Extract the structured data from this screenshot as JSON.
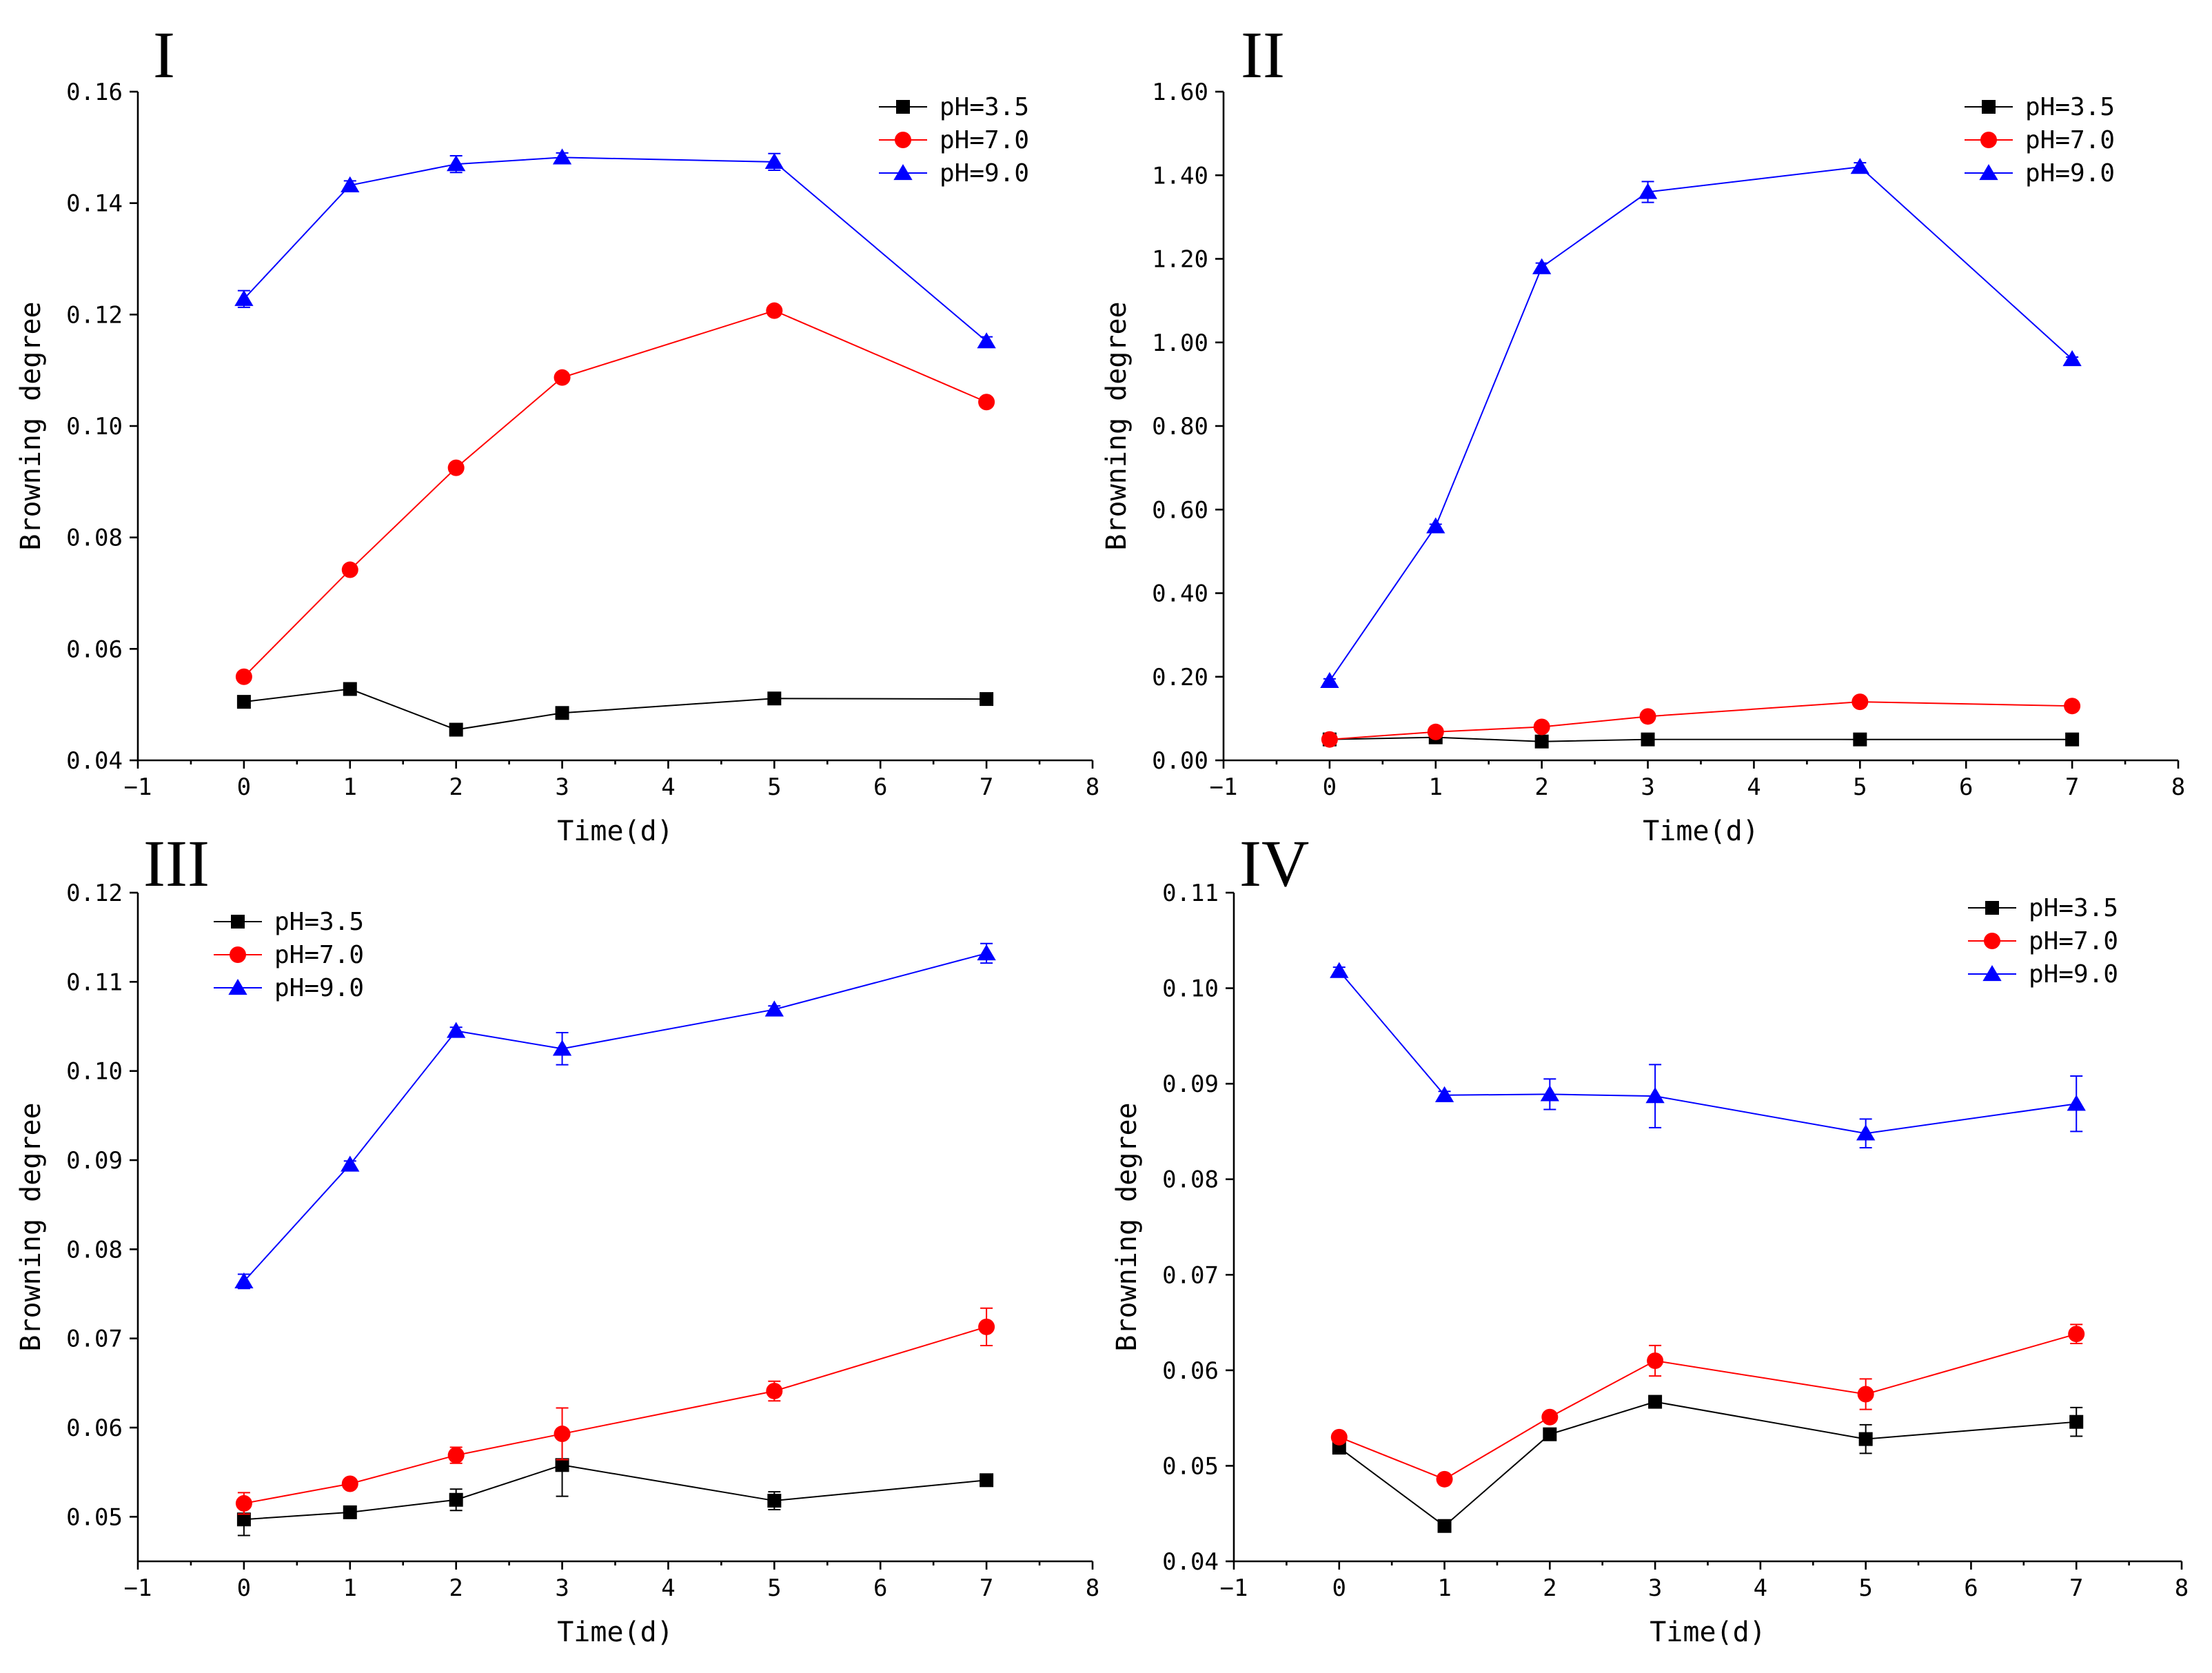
{
  "colors": {
    "pH35": "#000000",
    "pH70": "#ff0000",
    "pH90": "#0000ff"
  },
  "chart_data": [
    {
      "type": "line",
      "panel": "I",
      "xlabel": "Time(d)",
      "ylabel": "Browning degree",
      "xlim": [
        -1,
        8
      ],
      "xticks": [
        -1,
        0,
        1,
        2,
        3,
        4,
        5,
        6,
        7,
        8
      ],
      "ylim": [
        0.04,
        0.16
      ],
      "yticks": [
        0.04,
        0.06,
        0.08,
        0.1,
        0.12,
        0.14,
        0.16
      ],
      "ytick_labels": [
        "0.04",
        "0.06",
        "0.08",
        "0.10",
        "0.12",
        "0.14",
        "0.16"
      ],
      "legend_position": "top-right",
      "x": [
        0,
        1,
        2,
        3,
        5,
        7
      ],
      "series": [
        {
          "name": "pH=3.5",
          "marker": "square",
          "values": [
            0.0505,
            0.0528,
            0.0455,
            0.0485,
            0.0511,
            0.051
          ],
          "errors": [
            0.0005,
            0.0005,
            0.0005,
            0.0005,
            0.0005,
            0.0005
          ]
        },
        {
          "name": "pH=7.0",
          "marker": "circle",
          "values": [
            0.055,
            0.0742,
            0.0925,
            0.1087,
            0.1207,
            0.1043
          ],
          "errors": [
            0.0005,
            0.0005,
            0.0005,
            0.0008,
            0.0005,
            0.0005
          ]
        },
        {
          "name": "pH=9.0",
          "marker": "triangle",
          "values": [
            0.1228,
            0.1432,
            0.147,
            0.1482,
            0.1474,
            0.1152
          ],
          "errors": [
            0.0015,
            0.0008,
            0.0015,
            0.0008,
            0.0015,
            0.0008
          ]
        }
      ]
    },
    {
      "type": "line",
      "panel": "II",
      "xlabel": "Time(d)",
      "ylabel": "Browning degree",
      "xlim": [
        -1,
        8
      ],
      "xticks": [
        -1,
        0,
        1,
        2,
        3,
        4,
        5,
        6,
        7,
        8
      ],
      "ylim": [
        0,
        1.6
      ],
      "yticks": [
        0,
        0.2,
        0.4,
        0.6,
        0.8,
        1.0,
        1.2,
        1.4,
        1.6
      ],
      "ytick_labels": [
        "0.00",
        "0.20",
        "0.40",
        "0.60",
        "0.80",
        "1.00",
        "1.20",
        "1.40",
        "1.60"
      ],
      "legend_position": "top-right",
      "x": [
        0,
        1,
        2,
        3,
        5,
        7
      ],
      "series": [
        {
          "name": "pH=3.5",
          "marker": "square",
          "values": [
            0.05,
            0.055,
            0.045,
            0.05,
            0.05,
            0.05
          ],
          "errors": [
            0.005,
            0.005,
            0.005,
            0.005,
            0.005,
            0.005
          ]
        },
        {
          "name": "pH=7.0",
          "marker": "circle",
          "values": [
            0.05,
            0.068,
            0.08,
            0.105,
            0.14,
            0.13
          ],
          "errors": [
            0.005,
            0.005,
            0.005,
            0.005,
            0.005,
            0.005
          ]
        },
        {
          "name": "pH=9.0",
          "marker": "triangle",
          "values": [
            0.19,
            0.56,
            1.18,
            1.36,
            1.42,
            0.96
          ],
          "errors": [
            0.005,
            0.005,
            0.01,
            0.025,
            0.01,
            0.005
          ]
        }
      ]
    },
    {
      "type": "line",
      "panel": "III",
      "xlabel": "Time(d)",
      "ylabel": "Browning degree",
      "xlim": [
        -1,
        8
      ],
      "xticks": [
        -1,
        0,
        1,
        2,
        3,
        4,
        5,
        6,
        7,
        8
      ],
      "ylim": [
        0.045,
        0.12
      ],
      "yticks": [
        0.05,
        0.06,
        0.07,
        0.08,
        0.09,
        0.1,
        0.11,
        0.12
      ],
      "ytick_labels": [
        "0.05",
        "0.06",
        "0.07",
        "0.08",
        "0.09",
        "0.10",
        "0.11",
        "0.12"
      ],
      "legend_position": "top-left",
      "x": [
        0,
        1,
        2,
        3,
        5,
        7
      ],
      "series": [
        {
          "name": "pH=3.5",
          "marker": "square",
          "values": [
            0.0497,
            0.0505,
            0.0519,
            0.0558,
            0.0518,
            0.0541
          ],
          "errors": [
            0.0018,
            0.0004,
            0.0012,
            0.0035,
            0.001,
            0.0004
          ]
        },
        {
          "name": "pH=7.0",
          "marker": "circle",
          "values": [
            0.0515,
            0.0537,
            0.0569,
            0.0593,
            0.0641,
            0.0713
          ],
          "errors": [
            0.0012,
            0.0004,
            0.0009,
            0.0029,
            0.0011,
            0.0021
          ]
        },
        {
          "name": "pH=9.0",
          "marker": "triangle",
          "values": [
            0.0764,
            0.0895,
            0.1045,
            0.1025,
            0.1069,
            0.1132
          ],
          "errors": [
            0.0008,
            0.0004,
            0.0004,
            0.0018,
            0.0004,
            0.0011
          ]
        }
      ]
    },
    {
      "type": "line",
      "panel": "IV",
      "xlabel": "Time(d)",
      "ylabel": "Browning degree",
      "xlim": [
        -1,
        8
      ],
      "xticks": [
        -1,
        0,
        1,
        2,
        3,
        4,
        5,
        6,
        7,
        8
      ],
      "ylim": [
        0.04,
        0.11
      ],
      "yticks": [
        0.04,
        0.05,
        0.06,
        0.07,
        0.08,
        0.09,
        0.1,
        0.11
      ],
      "ytick_labels": [
        "0.04",
        "0.05",
        "0.06",
        "0.07",
        "0.08",
        "0.09",
        "0.10",
        "0.11"
      ],
      "legend_position": "top-right",
      "x": [
        0,
        1,
        2,
        3,
        5,
        7
      ],
      "series": [
        {
          "name": "pH=3.5",
          "marker": "square",
          "values": [
            0.0519,
            0.0437,
            0.0533,
            0.0567,
            0.0528,
            0.0546
          ],
          "errors": [
            0.0004,
            0.0004,
            0.0004,
            0.0004,
            0.0015,
            0.0015
          ]
        },
        {
          "name": "pH=7.0",
          "marker": "circle",
          "values": [
            0.053,
            0.0486,
            0.0551,
            0.061,
            0.0575,
            0.0638
          ],
          "errors": [
            0.0004,
            0.0004,
            0.0004,
            0.0016,
            0.0016,
            0.001
          ]
        },
        {
          "name": "pH=9.0",
          "marker": "triangle",
          "values": [
            0.1018,
            0.0888,
            0.0889,
            0.0887,
            0.0848,
            0.0879
          ],
          "errors": [
            0.0004,
            0.0004,
            0.0016,
            0.0033,
            0.0015,
            0.0029
          ]
        }
      ]
    }
  ]
}
